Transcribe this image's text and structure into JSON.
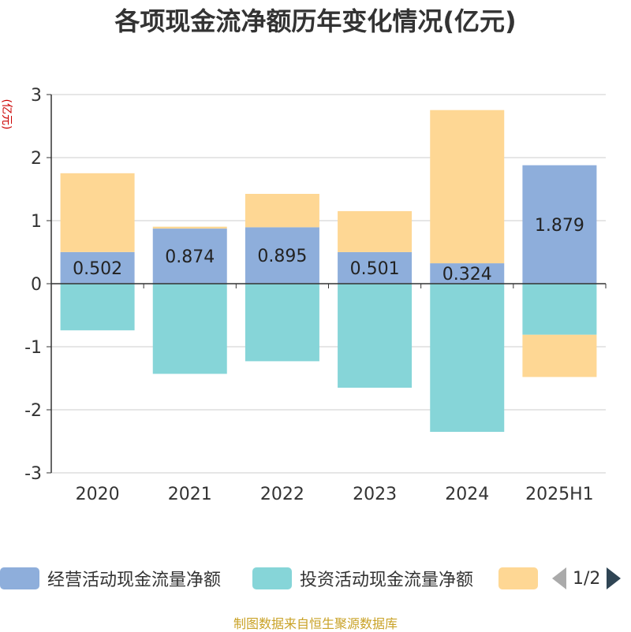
{
  "chart_data": {
    "type": "bar",
    "title": "各项现金流净额历年变化情况(亿元)",
    "ylabel": "(亿元)",
    "ylim": [
      -3,
      3
    ],
    "yticks": [
      -3,
      -2,
      -1,
      0,
      1,
      2,
      3
    ],
    "categories": [
      "2020",
      "2021",
      "2022",
      "2023",
      "2024",
      "2025H1"
    ],
    "stacked": true,
    "grid": true,
    "legend_position": "bottom",
    "series": [
      {
        "name": "经营活动现金流量净额",
        "color": "#8eaedb",
        "values": [
          0.502,
          0.874,
          0.895,
          0.501,
          0.324,
          1.879
        ]
      },
      {
        "name": "投资活动现金流量净额",
        "color": "#86d5d8",
        "values": [
          -0.74,
          -1.43,
          -1.23,
          -1.65,
          -2.35,
          -0.81
        ]
      },
      {
        "name": "",
        "color": "#fed794",
        "values": [
          1.25,
          0.03,
          0.53,
          0.65,
          2.43,
          -0.67
        ]
      }
    ],
    "data_labels": [
      "0.502",
      "0.874",
      "0.895",
      "0.501",
      "0.324",
      "1.879"
    ]
  },
  "legend": {
    "page_indicator": "1/2"
  },
  "source_note": "制图数据来自恒生聚源数据库"
}
